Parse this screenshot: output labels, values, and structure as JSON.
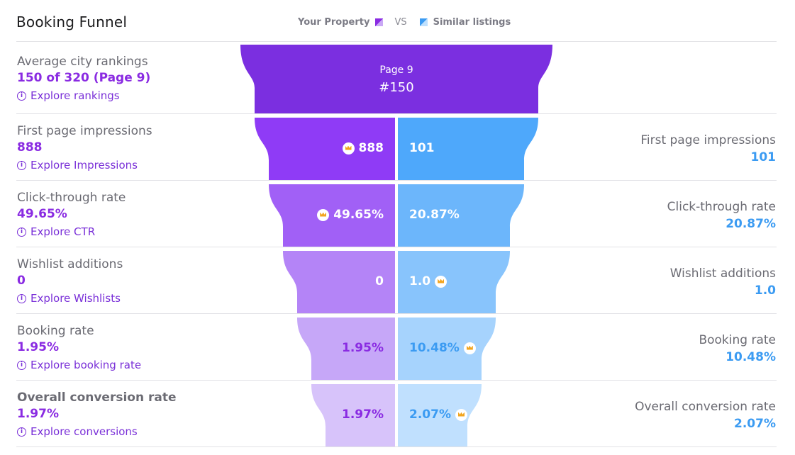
{
  "header": {
    "title": "Booking Funnel"
  },
  "legend": {
    "your_property": "Your Property",
    "vs": "VS",
    "similar": "Similar listings"
  },
  "colors": {
    "your_accent": "#8a2be2",
    "similar_accent": "#3b9bf2",
    "top_band": "#7b2fe0"
  },
  "chart_data": {
    "type": "funnel",
    "title": "Booking Funnel",
    "series": [
      {
        "name": "Your Property",
        "values": [
          "888",
          "49.65%",
          "0",
          "1.95%",
          "1.97%"
        ]
      },
      {
        "name": "Similar listings",
        "values": [
          "101",
          "20.87%",
          "1.0",
          "10.48%",
          "2.07%"
        ]
      }
    ],
    "top_stage": {
      "label": "Average city rankings",
      "value": "150 of 320 (Page 9)",
      "band_line1": "Page 9",
      "band_line2": "#150"
    },
    "stages": [
      {
        "label": "First page impressions",
        "your": "888",
        "similar": "101",
        "leader": "your",
        "link": "Explore Impressions"
      },
      {
        "label": "Click-through rate",
        "your": "49.65%",
        "similar": "20.87%",
        "leader": "your",
        "link": "Explore CTR"
      },
      {
        "label": "Wishlist additions",
        "your": "0",
        "similar": "1.0",
        "leader": "similar",
        "link": "Explore Wishlists"
      },
      {
        "label": "Booking rate",
        "your": "1.95%",
        "similar": "10.48%",
        "leader": "similar",
        "link": "Explore booking rate"
      },
      {
        "label": "Overall conversion rate",
        "your": "1.97%",
        "similar": "2.07%",
        "leader": "similar",
        "link": "Explore conversions"
      }
    ],
    "top_link": "Explore rankings"
  }
}
